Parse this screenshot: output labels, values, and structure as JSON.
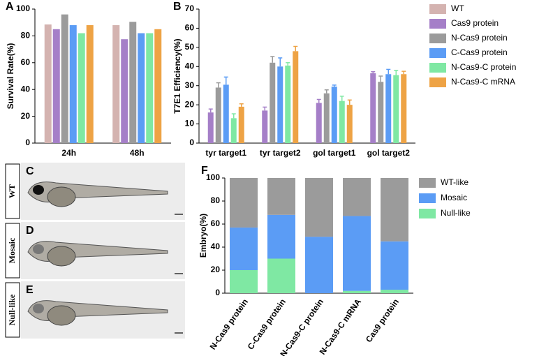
{
  "chart_data": [
    {
      "type": "bar",
      "panel": "A",
      "ylabel": "Survival Rate(%)",
      "categories": [
        "24h",
        "48h"
      ],
      "ylim": [
        0,
        100
      ],
      "yticks": [
        0,
        20,
        40,
        60,
        80,
        100
      ],
      "legend": "outside-right",
      "series": [
        {
          "name": "WT",
          "color": "#d4b3b0",
          "values": [
            88.5,
            88
          ]
        },
        {
          "name": "Cas9 protein",
          "color": "#a57fc8",
          "values": [
            85,
            77.5
          ]
        },
        {
          "name": "N-Cas9 protein",
          "color": "#9b9b9b",
          "values": [
            96,
            90.5
          ]
        },
        {
          "name": "C-Cas9 protein",
          "color": "#5b9cf5",
          "values": [
            88,
            82
          ]
        },
        {
          "name": "N-Cas9-C protein",
          "color": "#7fe8a3",
          "values": [
            82,
            82
          ]
        },
        {
          "name": "N-Cas9-C mRNA",
          "color": "#eea345",
          "values": [
            88,
            85
          ]
        }
      ]
    },
    {
      "type": "bar",
      "panel": "B",
      "ylabel": "T7E1 Efficiency(%)",
      "categories": [
        "tyr target1",
        "tyr target2",
        "gol target1",
        "gol target2"
      ],
      "ylim": [
        0,
        70
      ],
      "yticks": [
        0,
        10,
        20,
        30,
        40,
        50,
        60,
        70
      ],
      "series": [
        {
          "color": "#a57fc8",
          "values": [
            16,
            17,
            21,
            36.5
          ],
          "errors": [
            1.8,
            1.8,
            1.8,
            0.8
          ]
        },
        {
          "color": "#9b9b9b",
          "values": [
            29,
            42,
            26,
            32
          ],
          "errors": [
            2.5,
            3.2,
            1.8,
            3
          ]
        },
        {
          "color": "#5b9cf5",
          "values": [
            30.5,
            40,
            29.5,
            36
          ],
          "errors": [
            4,
            4.5,
            0.8,
            2.5
          ]
        },
        {
          "color": "#7fe8a3",
          "values": [
            13,
            40.5,
            22,
            35.5
          ],
          "errors": [
            2.3,
            1.5,
            2.5,
            2.5
          ]
        },
        {
          "color": "#eea345",
          "values": [
            19,
            48,
            20,
            36
          ],
          "errors": [
            1.5,
            2.5,
            2.5,
            1.5
          ]
        }
      ]
    },
    {
      "type": "stacked_bar",
      "panel": "F",
      "ylabel": "Embryo(%)",
      "categories": [
        "N-Cas9 protein",
        "C-Cas9 protein",
        "N-Cas9-C protein",
        "N-Cas9-C mRNA",
        "Cas9 protein"
      ],
      "ylim": [
        0,
        100
      ],
      "yticks": [
        0,
        20,
        40,
        60,
        80,
        100
      ],
      "legend": "outside-right",
      "series": [
        {
          "name": "Null-like",
          "color": "#7fe8a3",
          "values": [
            20,
            30,
            0,
            2,
            3
          ]
        },
        {
          "name": "Mosaic",
          "color": "#5b9cf5",
          "values": [
            37,
            38,
            49,
            65,
            42
          ]
        },
        {
          "name": "WT-like",
          "color": "#9b9b9b",
          "values": [
            43,
            32,
            51,
            33,
            55
          ]
        }
      ]
    }
  ],
  "image_panels": [
    {
      "letter": "C",
      "label": "WT"
    },
    {
      "letter": "D",
      "label": "Mosaic"
    },
    {
      "letter": "E",
      "label": "Null-like"
    }
  ]
}
